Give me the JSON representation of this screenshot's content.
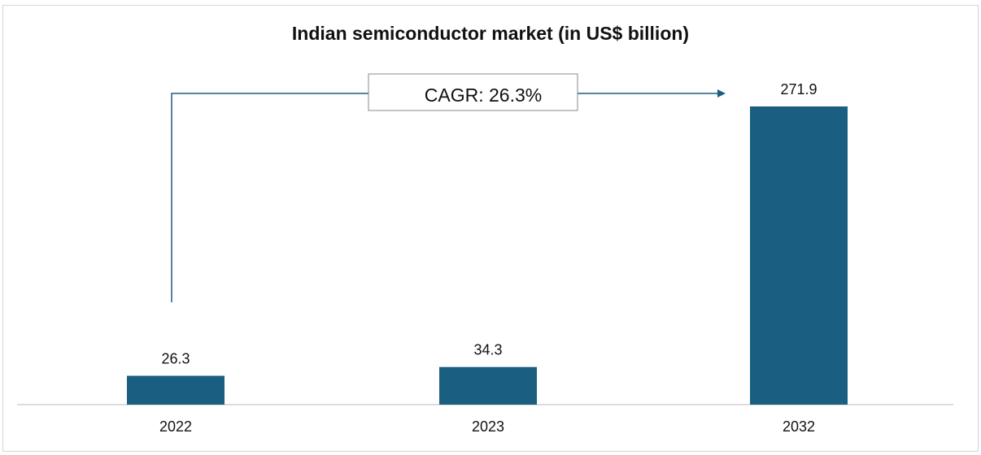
{
  "chart_data": {
    "type": "bar",
    "title": "Indian semiconductor market (in US$ billion)",
    "categories": [
      "2022",
      "2023",
      "2032"
    ],
    "values": [
      26.3,
      34.3,
      271.9
    ],
    "value_labels": [
      "26.3",
      "34.3",
      "271.9"
    ],
    "annotation": "CAGR: 26.3%",
    "bar_color": "#1a5f82",
    "xlabel": "",
    "ylabel": "",
    "grid": false,
    "legend": "none"
  }
}
